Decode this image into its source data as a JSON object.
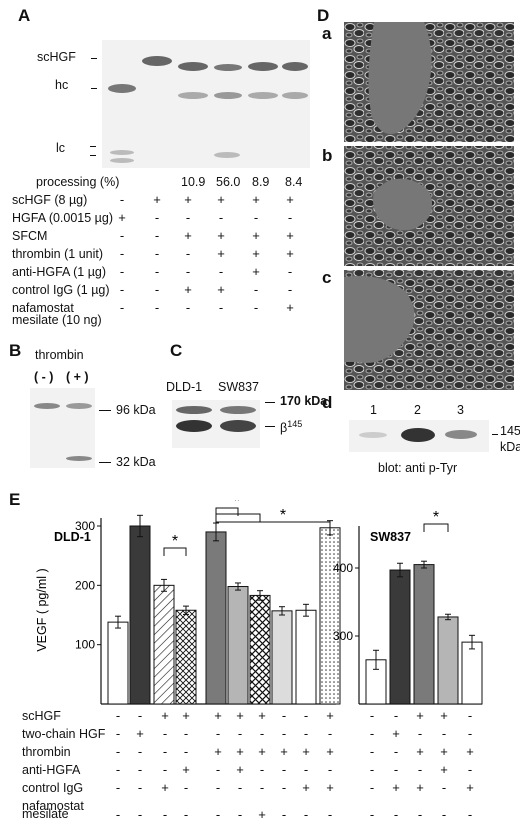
{
  "panel_A": {
    "label": "A",
    "marker_labels": [
      "scHGF",
      "hc",
      "lc"
    ],
    "processing_label": "processing (%)",
    "processing_values": [
      "10.9",
      "56.0",
      "8.9",
      "8.4"
    ],
    "rows": [
      {
        "label": "scHGF (8 µg)",
        "signs": [
          "-",
          "+",
          "+",
          "+",
          "+",
          "+"
        ]
      },
      {
        "label": "HGFA (0.0015 µg)",
        "signs": [
          "+",
          "-",
          "-",
          "-",
          "-",
          "-"
        ]
      },
      {
        "label": "SFCM",
        "signs": [
          "-",
          "-",
          "+",
          "+",
          "+",
          "+"
        ]
      },
      {
        "label": "thrombin (1 unit)",
        "signs": [
          "-",
          "-",
          "-",
          "+",
          "+",
          "+"
        ]
      },
      {
        "label": "anti-HGFA (1 µg)",
        "signs": [
          "-",
          "-",
          "-",
          "-",
          "+",
          "-"
        ]
      },
      {
        "label": "control IgG (1 µg)",
        "signs": [
          "-",
          "-",
          "+",
          "+",
          "-",
          "-"
        ]
      },
      {
        "label": "nafamostat",
        "signs": [
          "-",
          "-",
          "-",
          "-",
          "-",
          "+"
        ]
      }
    ],
    "last_row_label_2": "mesilate  (10 ng)"
  },
  "panel_B": {
    "label": "B",
    "title": "thrombin",
    "lanes": [
      "( - )",
      "( + )"
    ],
    "markers": [
      "96 kDa",
      "32 kDa"
    ]
  },
  "panel_C": {
    "label": "C",
    "lanes": [
      "DLD-1",
      "SW837"
    ],
    "marker": "170 kDa",
    "beta": "β",
    "beta_sup": "145"
  },
  "panel_D": {
    "label": "D",
    "sub_labels": [
      "a",
      "b",
      "c",
      "d"
    ],
    "blot_lanes": [
      "1",
      "2",
      "3"
    ],
    "marker_1": "145",
    "marker_2": "kDa",
    "blot_caption": "blot: anti p-Tyr"
  },
  "panel_E": {
    "label": "E",
    "ylabel": "VEGF ( pg/ml )",
    "rows": [
      {
        "label": "scHGF",
        "left": [
          "-",
          "-",
          "+",
          "+",
          "+",
          "+",
          "+",
          "-",
          "-",
          "+"
        ],
        "right": [
          "-",
          "-",
          "+",
          "+",
          "-"
        ]
      },
      {
        "label": "two-chain HGF",
        "left": [
          "-",
          "+",
          "-",
          "-",
          "-",
          "-",
          "-",
          "-",
          "-",
          "-"
        ],
        "right": [
          "-",
          "+",
          "-",
          "-",
          "-"
        ]
      },
      {
        "label": "thrombin",
        "left": [
          "-",
          "-",
          "-",
          "-",
          "+",
          "+",
          "+",
          "+",
          "+",
          "+"
        ],
        "right": [
          "-",
          "-",
          "+",
          "+",
          "+"
        ]
      },
      {
        "label": "anti-HGFA",
        "left": [
          "-",
          "-",
          "-",
          "+",
          "-",
          "+",
          "-",
          "-",
          "-",
          "-"
        ],
        "right": [
          "-",
          "-",
          "-",
          "+",
          "-"
        ]
      },
      {
        "label": "control IgG",
        "left": [
          "-",
          "-",
          "+",
          "-",
          "-",
          "-",
          "-",
          "-",
          "+",
          "+"
        ],
        "right": [
          "-",
          "+",
          "+",
          "-",
          "+"
        ]
      },
      {
        "label": "nafamostat",
        "left": [
          "-",
          "-",
          "-",
          "-",
          "-",
          "-",
          "+",
          "-",
          "-",
          "-"
        ],
        "right": [
          "-",
          "-",
          "-",
          "-",
          "-"
        ]
      }
    ],
    "last_row_label_2": "mesilate"
  },
  "chart_data": [
    {
      "type": "bar",
      "title": "DLD-1",
      "ylabel": "VEGF ( pg/ml )",
      "ylim": [
        0,
        300
      ],
      "yticks": [
        100,
        200,
        300
      ],
      "values": [
        138,
        300,
        200,
        158,
        290,
        198,
        183,
        157,
        158,
        297
      ],
      "errors": [
        10,
        18,
        10,
        7,
        15,
        6,
        8,
        7,
        10,
        12
      ],
      "patterns": [
        "white",
        "dark",
        "hatch",
        "cross",
        "midgray",
        "lightgray",
        "crosshatch",
        "light",
        "white",
        "dots"
      ],
      "significance": "*"
    },
    {
      "type": "bar",
      "title": "SW837",
      "ylim": [
        200,
        450
      ],
      "yticks": [
        300,
        400
      ],
      "values": [
        265,
        397,
        405,
        328,
        291
      ],
      "errors": [
        14,
        10,
        5,
        4,
        10
      ],
      "patterns": [
        "white",
        "dark",
        "midgray",
        "lightgray",
        "white"
      ],
      "significance": "*"
    }
  ]
}
